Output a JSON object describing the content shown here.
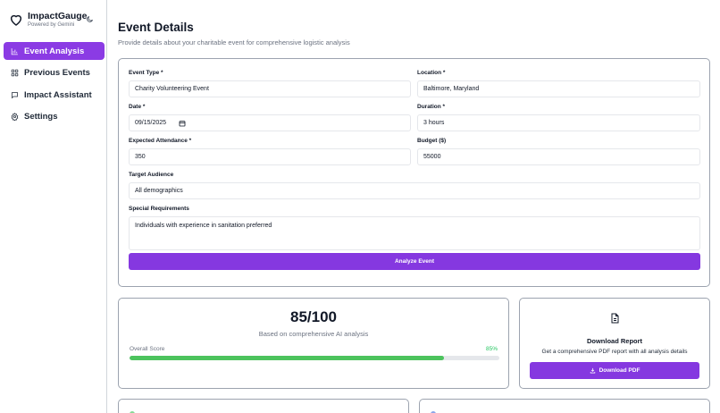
{
  "app": {
    "name": "ImpactGauge",
    "subtitle": "Powered by Gemini",
    "accent_color": "#8538e0",
    "success_color": "#4cc35d"
  },
  "sidebar": {
    "items": [
      {
        "label": "Event Analysis",
        "icon": "bar-chart-icon",
        "active": true
      },
      {
        "label": "Previous Events",
        "icon": "grid-icon",
        "active": false
      },
      {
        "label": "Impact Assistant",
        "icon": "message-square-icon",
        "active": false
      },
      {
        "label": "Settings",
        "icon": "gear-icon",
        "active": false
      }
    ]
  },
  "page": {
    "title": "Event Details",
    "subtitle": "Provide details about your charitable event for comprehensive logistic analysis"
  },
  "form": {
    "event_type": {
      "label": "Event Type *",
      "value": "Charity Volunteering Event"
    },
    "location": {
      "label": "Location *",
      "value": "Baltimore, Maryland"
    },
    "date": {
      "label": "Date *",
      "value": "09/15/2025"
    },
    "duration": {
      "label": "Duration *",
      "value": "3 hours"
    },
    "attendance": {
      "label": "Expected Attendance *",
      "value": "350"
    },
    "budget": {
      "label": "Budget ($)",
      "value": "55000"
    },
    "audience": {
      "label": "Target Audience",
      "value": "All demographics"
    },
    "requirements": {
      "label": "Special Requirements",
      "value": "Individuals with experience in sanitation preferred"
    },
    "submit_label": "Analyze Event"
  },
  "score": {
    "value": "85/100",
    "subtitle": "Based on comprehensive AI analysis",
    "label": "Overall Score",
    "percent_text": "85%",
    "percent": 85
  },
  "download": {
    "title": "Download Report",
    "subtitle": "Get a comprehensive PDF report with all analysis details",
    "button_label": "Download PDF"
  }
}
